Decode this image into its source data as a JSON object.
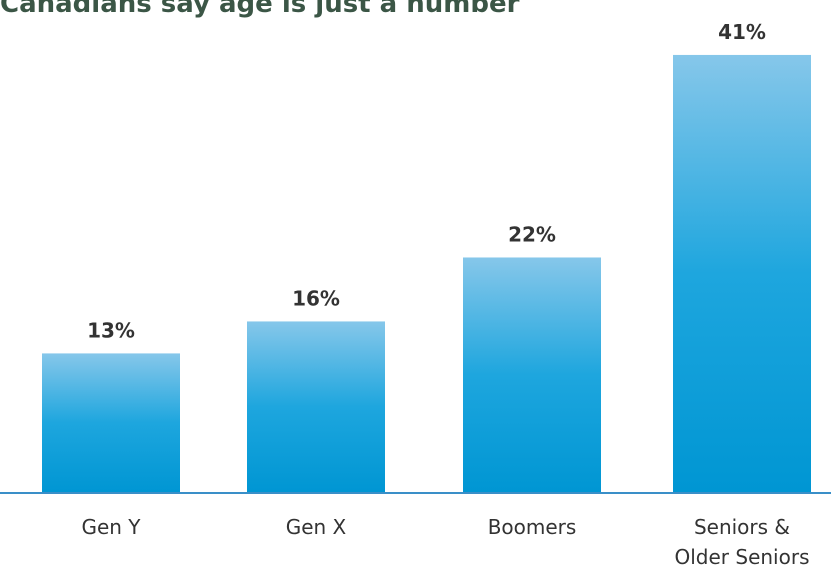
{
  "chart_data": {
    "type": "bar",
    "title": "Canadians say age is just a number",
    "categories": [
      "Gen Y",
      "Gen X",
      "Boomers",
      "Seniors & Older Seniors"
    ],
    "values": [
      13,
      16,
      22,
      41
    ],
    "value_labels": [
      "13%",
      "16%",
      "22%",
      "41%"
    ],
    "color": "#0a9dd8"
  }
}
